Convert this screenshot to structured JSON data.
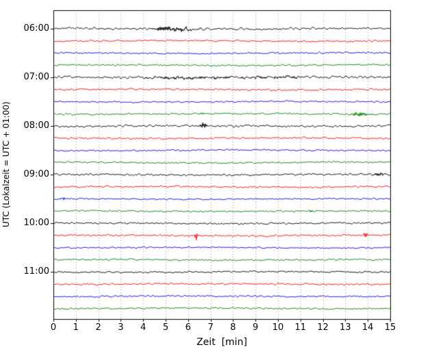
{
  "chart_data": {
    "type": "line",
    "variant": "helicorder-seismogram",
    "title": "",
    "xlabel": "Zeit  [min]",
    "ylabel": "UTC (Lokalzeit = UTC + 01:00)",
    "x_ticks": [
      "0",
      "1",
      "2",
      "3",
      "4",
      "5",
      "6",
      "7",
      "8",
      "9",
      "10",
      "11",
      "12",
      "13",
      "14",
      "15"
    ],
    "x_range": [
      0,
      15
    ],
    "y_ticks": [
      "06:00",
      "07:00",
      "08:00",
      "09:00",
      "10:00",
      "11:00"
    ],
    "rows_per_hour": 4,
    "minutes_per_row": 15,
    "trace_colors": [
      "#000000",
      "#ff0000",
      "#0000ff",
      "#008000"
    ],
    "grid": {
      "vertical_dotted": true,
      "color": "#999999"
    },
    "noise_seed": 42,
    "rows": [
      {
        "start": "06:00",
        "color": "#000000",
        "amp": 1.8,
        "events": [
          {
            "min": 5.6,
            "amp": 3.2,
            "w": 0.5
          },
          {
            "min": 4.8,
            "amp": 1.8,
            "w": 0.25
          }
        ]
      },
      {
        "start": "06:15",
        "color": "#ff0000",
        "amp": 1.3,
        "events": []
      },
      {
        "start": "06:30",
        "color": "#0000ff",
        "amp": 1.2,
        "events": []
      },
      {
        "start": "06:45",
        "color": "#008000",
        "amp": 1.25,
        "events": []
      },
      {
        "start": "07:00",
        "color": "#000000",
        "amp": 1.9,
        "events": [
          {
            "min": 6.0,
            "amp": 1.5,
            "w": 1.5
          },
          {
            "min": 9.8,
            "amp": 1.5,
            "w": 0.8
          }
        ]
      },
      {
        "start": "07:15",
        "color": "#ff0000",
        "amp": 1.4,
        "events": []
      },
      {
        "start": "07:30",
        "color": "#0000ff",
        "amp": 1.15,
        "events": []
      },
      {
        "start": "07:45",
        "color": "#008000",
        "amp": 1.3,
        "events": [
          {
            "min": 13.7,
            "amp": 2.6,
            "w": 0.3
          },
          {
            "min": 6.6,
            "amp": 1.6,
            "w": 0.12
          }
        ]
      },
      {
        "start": "08:00",
        "color": "#000000",
        "amp": 1.7,
        "events": [
          {
            "min": 6.7,
            "amp": 4.0,
            "w": 0.1
          }
        ]
      },
      {
        "start": "08:15",
        "color": "#ff0000",
        "amp": 1.35,
        "events": []
      },
      {
        "start": "08:30",
        "color": "#0000ff",
        "amp": 1.15,
        "events": []
      },
      {
        "start": "08:45",
        "color": "#008000",
        "amp": 1.25,
        "events": []
      },
      {
        "start": "09:00",
        "color": "#000000",
        "amp": 1.55,
        "events": [
          {
            "min": 14.6,
            "amp": 2.2,
            "w": 0.2
          }
        ]
      },
      {
        "start": "09:15",
        "color": "#ff0000",
        "amp": 1.45,
        "events": []
      },
      {
        "start": "09:30",
        "color": "#0000ff",
        "amp": 1.15,
        "events": [
          {
            "min": 0.45,
            "amp": 2.2,
            "w": 0.08
          }
        ]
      },
      {
        "start": "09:45",
        "color": "#008000",
        "amp": 1.25,
        "events": [
          {
            "min": 11.5,
            "amp": 1.8,
            "w": 0.08
          }
        ]
      },
      {
        "start": "10:00",
        "color": "#000000",
        "amp": 1.45,
        "events": []
      },
      {
        "start": "10:15",
        "color": "#ff0000",
        "amp": 1.35,
        "events": [
          {
            "min": 6.35,
            "amp": 6.0,
            "w": 0.06
          },
          {
            "min": 13.9,
            "amp": 5.0,
            "w": 0.06
          }
        ]
      },
      {
        "start": "10:30",
        "color": "#0000ff",
        "amp": 1.15,
        "events": []
      },
      {
        "start": "10:45",
        "color": "#008000",
        "amp": 1.25,
        "events": []
      },
      {
        "start": "11:00",
        "color": "#000000",
        "amp": 1.35,
        "events": []
      },
      {
        "start": "11:15",
        "color": "#ff0000",
        "amp": 1.3,
        "events": []
      },
      {
        "start": "11:30",
        "color": "#0000ff",
        "amp": 1.2,
        "events": []
      },
      {
        "start": "11:45",
        "color": "#008000",
        "amp": 1.25,
        "events": []
      }
    ]
  }
}
